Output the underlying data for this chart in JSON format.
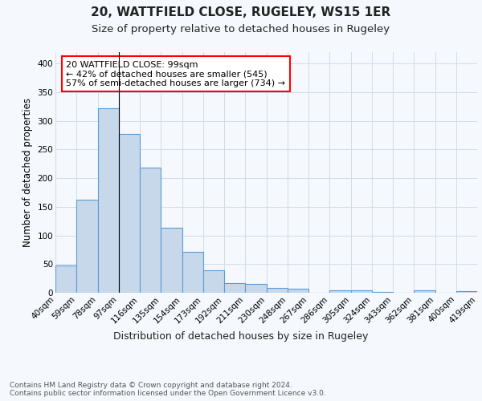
{
  "title1": "20, WATTFIELD CLOSE, RUGELEY, WS15 1ER",
  "title2": "Size of property relative to detached houses in Rugeley",
  "xlabel": "Distribution of detached houses by size in Rugeley",
  "ylabel": "Number of detached properties",
  "bar_color": "#c8d8eb",
  "bar_edge_color": "#5b9bd5",
  "bar_values": [
    47,
    162,
    322,
    277,
    219,
    113,
    72,
    39,
    17,
    15,
    9,
    7,
    0,
    4,
    4,
    2,
    0,
    4,
    0,
    3
  ],
  "categories": [
    "40sqm",
    "59sqm",
    "78sqm",
    "97sqm",
    "116sqm",
    "135sqm",
    "154sqm",
    "173sqm",
    "192sqm",
    "211sqm",
    "230sqm",
    "248sqm",
    "267sqm",
    "286sqm",
    "305sqm",
    "324sqm",
    "343sqm",
    "362sqm",
    "381sqm",
    "400sqm",
    "419sqm"
  ],
  "ylim": [
    0,
    420
  ],
  "yticks": [
    0,
    50,
    100,
    150,
    200,
    250,
    300,
    350,
    400
  ],
  "annotation_line1": "20 WATTFIELD CLOSE: 99sqm",
  "annotation_line2": "← 42% of detached houses are smaller (545)",
  "annotation_line3": "57% of semi-detached houses are larger (734) →",
  "vline_x": 2.5,
  "footer_text": "Contains HM Land Registry data © Crown copyright and database right 2024.\nContains public sector information licensed under the Open Government Licence v3.0.",
  "bg_color": "#f5f8fc",
  "plot_bg_color": "#f5f8fc",
  "grid_color": "#d0dcea",
  "title1_fontsize": 11,
  "title2_fontsize": 9.5,
  "xlabel_fontsize": 9,
  "ylabel_fontsize": 8.5,
  "tick_fontsize": 7.5,
  "annotation_fontsize": 8,
  "footer_fontsize": 6.5
}
